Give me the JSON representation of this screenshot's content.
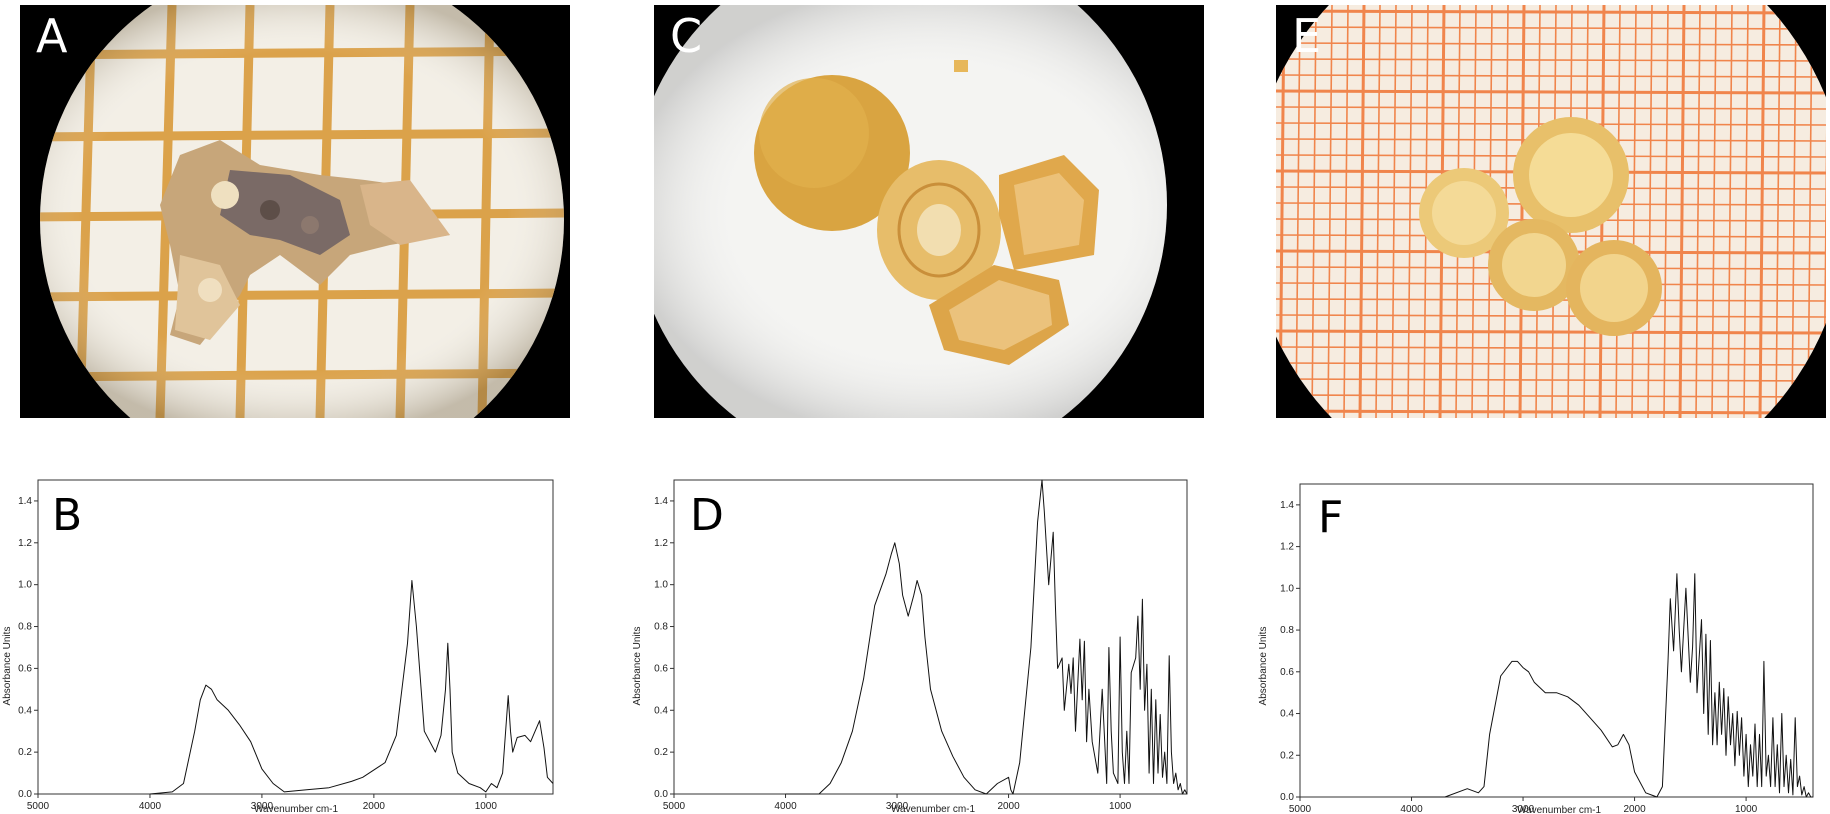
{
  "panels": {
    "a": {
      "label": "A"
    },
    "b": {
      "label": "B"
    },
    "c": {
      "label": "C"
    },
    "d": {
      "label": "D"
    },
    "e": {
      "label": "E"
    },
    "f": {
      "label": "F"
    }
  },
  "colors": {
    "grid_orange": "#d99a3a",
    "grid_red": "#f07a3c",
    "stone_yellow": "#d9a441",
    "stone_pale": "#f1d27a",
    "background_black": "#000000"
  },
  "chart_data": [
    {
      "panel": "B",
      "type": "line",
      "xlabel": "Wavenumber cm-1",
      "ylabel": "Absorbance Units",
      "xlim": [
        5000,
        400
      ],
      "ylim": [
        0,
        1.5
      ],
      "xticks": [
        "5000",
        "4000",
        "3000",
        "2000",
        "1000"
      ],
      "yticks": [
        "0.0",
        "0.2",
        "0.4",
        "0.6",
        "0.8",
        "1.0",
        "1.2",
        "1.4"
      ],
      "x": [
        4000,
        3800,
        3700,
        3600,
        3550,
        3500,
        3450,
        3400,
        3300,
        3200,
        3100,
        3000,
        2900,
        2800,
        2600,
        2400,
        2200,
        2100,
        1900,
        1800,
        1700,
        1660,
        1620,
        1550,
        1450,
        1400,
        1360,
        1340,
        1320,
        1300,
        1250,
        1150,
        1050,
        1000,
        950,
        900,
        850,
        800,
        780,
        760,
        720,
        650,
        600,
        560,
        520,
        480,
        450,
        400
      ],
      "y": [
        0.0,
        0.01,
        0.05,
        0.3,
        0.45,
        0.52,
        0.5,
        0.45,
        0.4,
        0.33,
        0.25,
        0.12,
        0.05,
        0.01,
        0.02,
        0.03,
        0.06,
        0.08,
        0.15,
        0.28,
        0.72,
        1.02,
        0.8,
        0.3,
        0.2,
        0.28,
        0.5,
        0.72,
        0.5,
        0.2,
        0.1,
        0.05,
        0.03,
        0.01,
        0.05,
        0.03,
        0.1,
        0.47,
        0.3,
        0.2,
        0.27,
        0.28,
        0.25,
        0.3,
        0.35,
        0.22,
        0.08,
        0.05
      ]
    },
    {
      "panel": "D",
      "type": "line",
      "xlabel": "Wavenumber cm-1",
      "ylabel": "Absorbance Units",
      "xlim": [
        5000,
        400
      ],
      "ylim": [
        0,
        1.5
      ],
      "xticks": [
        "5000",
        "4000",
        "3000",
        "2000",
        "1000"
      ],
      "yticks": [
        "0.0",
        "0.2",
        "0.4",
        "0.6",
        "0.8",
        "1.0",
        "1.2",
        "1.4"
      ],
      "x": [
        4000,
        3700,
        3600,
        3500,
        3400,
        3300,
        3200,
        3100,
        3050,
        3020,
        2980,
        2950,
        2900,
        2850,
        2820,
        2780,
        2750,
        2700,
        2600,
        2500,
        2400,
        2300,
        2200,
        2100,
        2000,
        1980,
        1960,
        1900,
        1800,
        1740,
        1700,
        1680,
        1640,
        1600,
        1580,
        1560,
        1520,
        1500,
        1460,
        1440,
        1420,
        1400,
        1360,
        1340,
        1320,
        1300,
        1280,
        1250,
        1200,
        1160,
        1120,
        1100,
        1080,
        1060,
        1020,
        1000,
        980,
        960,
        940,
        920,
        900,
        860,
        840,
        820,
        800,
        780,
        760,
        740,
        720,
        700,
        680,
        660,
        640,
        620,
        600,
        580,
        560,
        540,
        520,
        500,
        480,
        460,
        440,
        420,
        400
      ],
      "y": [
        0.0,
        0.0,
        0.05,
        0.15,
        0.3,
        0.55,
        0.9,
        1.05,
        1.15,
        1.2,
        1.1,
        0.95,
        0.85,
        0.95,
        1.02,
        0.95,
        0.75,
        0.5,
        0.3,
        0.18,
        0.08,
        0.02,
        0.0,
        0.05,
        0.08,
        0.02,
        0.0,
        0.15,
        0.7,
        1.3,
        1.5,
        1.35,
        1.0,
        1.25,
        0.9,
        0.6,
        0.65,
        0.4,
        0.62,
        0.48,
        0.65,
        0.3,
        0.74,
        0.45,
        0.73,
        0.25,
        0.5,
        0.25,
        0.1,
        0.5,
        0.05,
        0.7,
        0.3,
        0.1,
        0.05,
        0.75,
        0.2,
        0.05,
        0.3,
        0.05,
        0.58,
        0.65,
        0.85,
        0.5,
        0.93,
        0.4,
        0.62,
        0.1,
        0.5,
        0.05,
        0.45,
        0.1,
        0.38,
        0.08,
        0.2,
        0.05,
        0.66,
        0.2,
        0.05,
        0.1,
        0.02,
        0.05,
        0.0,
        0.02,
        0.0
      ]
    },
    {
      "panel": "F",
      "type": "line",
      "xlabel": "Wavenumber cm-1",
      "ylabel": "Absorbance Units",
      "xlim": [
        5000,
        400
      ],
      "ylim": [
        0,
        1.5
      ],
      "xticks": [
        "5000",
        "4000",
        "3000",
        "2000",
        "1000"
      ],
      "yticks": [
        "0.0",
        "0.2",
        "0.4",
        "0.6",
        "0.8",
        "1.0",
        "1.2",
        "1.4"
      ],
      "x": [
        4000,
        3700,
        3500,
        3400,
        3350,
        3300,
        3200,
        3100,
        3050,
        3000,
        2950,
        2900,
        2800,
        2700,
        2600,
        2500,
        2400,
        2300,
        2200,
        2150,
        2100,
        2050,
        2000,
        1900,
        1800,
        1750,
        1700,
        1680,
        1650,
        1620,
        1600,
        1580,
        1540,
        1500,
        1480,
        1460,
        1440,
        1400,
        1380,
        1360,
        1340,
        1320,
        1300,
        1280,
        1260,
        1240,
        1220,
        1200,
        1180,
        1160,
        1140,
        1120,
        1100,
        1080,
        1060,
        1040,
        1020,
        1000,
        980,
        960,
        940,
        920,
        900,
        880,
        860,
        840,
        820,
        800,
        780,
        760,
        740,
        720,
        700,
        680,
        660,
        640,
        620,
        600,
        580,
        560,
        540,
        520,
        500,
        480,
        460,
        440,
        420,
        400
      ],
      "y": [
        0.0,
        0.0,
        0.04,
        0.02,
        0.05,
        0.3,
        0.58,
        0.65,
        0.65,
        0.62,
        0.6,
        0.55,
        0.5,
        0.5,
        0.48,
        0.44,
        0.38,
        0.32,
        0.24,
        0.25,
        0.3,
        0.25,
        0.12,
        0.02,
        0.0,
        0.05,
        0.65,
        0.95,
        0.7,
        1.07,
        0.8,
        0.6,
        1.0,
        0.55,
        0.72,
        1.07,
        0.5,
        0.85,
        0.4,
        0.78,
        0.3,
        0.75,
        0.25,
        0.5,
        0.25,
        0.55,
        0.3,
        0.52,
        0.2,
        0.48,
        0.25,
        0.4,
        0.15,
        0.41,
        0.2,
        0.38,
        0.1,
        0.3,
        0.05,
        0.25,
        0.1,
        0.35,
        0.05,
        0.3,
        0.05,
        0.65,
        0.1,
        0.2,
        0.05,
        0.38,
        0.05,
        0.25,
        0.02,
        0.4,
        0.05,
        0.2,
        0.02,
        0.18,
        0.01,
        0.38,
        0.05,
        0.1,
        0.01,
        0.05,
        0.0,
        0.02,
        0.0,
        0.0
      ]
    }
  ]
}
